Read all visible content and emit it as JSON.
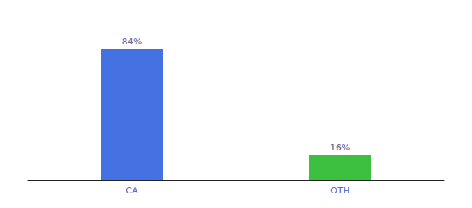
{
  "chart_data": {
    "type": "bar",
    "categories": [
      "CA",
      "OTH"
    ],
    "values": [
      84,
      16
    ],
    "value_labels": [
      "84%",
      "16%"
    ],
    "colors": [
      "#4472e3",
      "#3dbf40"
    ],
    "ylim": [
      0,
      100
    ],
    "data_labels": true,
    "tick_labels": "x",
    "grid": false
  }
}
